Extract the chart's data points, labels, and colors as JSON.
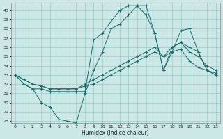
{
  "xlabel": "Humidex (Indice chaleur)",
  "bg_color": "#cce8e6",
  "grid_color": "#99cccc",
  "line_color": "#1a6b6b",
  "xlim": [
    -0.5,
    23.5
  ],
  "ylim": [
    27.8,
    40.8
  ],
  "yticks": [
    28,
    29,
    30,
    31,
    32,
    33,
    34,
    35,
    36,
    37,
    38,
    39,
    40
  ],
  "xticks": [
    0,
    1,
    2,
    3,
    4,
    5,
    6,
    7,
    8,
    9,
    10,
    11,
    12,
    13,
    14,
    15,
    16,
    17,
    18,
    19,
    20,
    21,
    22,
    23
  ],
  "series": [
    {
      "x": [
        0,
        1,
        2,
        3,
        4,
        5,
        6,
        7,
        8,
        9,
        10,
        11,
        12,
        13,
        14,
        15,
        16,
        17,
        18,
        19,
        20,
        21,
        22,
        23
      ],
      "y": [
        33.0,
        32.0,
        31.5,
        30.0,
        29.5,
        28.2,
        28.0,
        27.8,
        31.0,
        33.5,
        35.5,
        38.0,
        38.5,
        39.5,
        40.5,
        40.5,
        37.5,
        33.5,
        36.0,
        36.5,
        36.0,
        35.5,
        33.5,
        33.0
      ]
    },
    {
      "x": [
        0,
        1,
        2,
        3,
        4,
        5,
        6,
        7,
        8,
        9,
        10,
        11,
        12,
        13,
        14,
        15,
        16,
        17,
        18,
        19,
        20,
        21,
        22,
        23
      ],
      "y": [
        33.0,
        32.0,
        31.5,
        31.5,
        31.2,
        31.2,
        31.2,
        31.2,
        31.2,
        36.8,
        37.5,
        38.8,
        40.0,
        40.5,
        40.5,
        39.5,
        37.5,
        33.5,
        35.5,
        37.8,
        38.0,
        35.5,
        33.5,
        33.0
      ]
    },
    {
      "x": [
        0,
        1,
        2,
        3,
        4,
        5,
        6,
        7,
        8,
        9,
        10,
        11,
        12,
        13,
        14,
        15,
        16,
        17,
        18,
        19,
        20,
        21,
        22,
        23
      ],
      "y": [
        33.0,
        32.5,
        32.0,
        31.8,
        31.5,
        31.5,
        31.5,
        31.5,
        32.0,
        32.5,
        33.0,
        33.5,
        34.0,
        34.5,
        35.0,
        35.5,
        36.0,
        35.0,
        36.0,
        36.5,
        35.5,
        35.0,
        34.0,
        33.5
      ]
    },
    {
      "x": [
        0,
        1,
        2,
        3,
        4,
        5,
        6,
        7,
        8,
        9,
        10,
        11,
        12,
        13,
        14,
        15,
        16,
        17,
        18,
        19,
        20,
        21,
        22,
        23
      ],
      "y": [
        33.0,
        32.5,
        32.0,
        31.8,
        31.5,
        31.5,
        31.5,
        31.5,
        31.8,
        32.0,
        32.5,
        33.0,
        33.5,
        34.0,
        34.5,
        35.0,
        35.5,
        35.0,
        35.5,
        35.8,
        34.5,
        33.8,
        33.5,
        33.2
      ]
    }
  ]
}
